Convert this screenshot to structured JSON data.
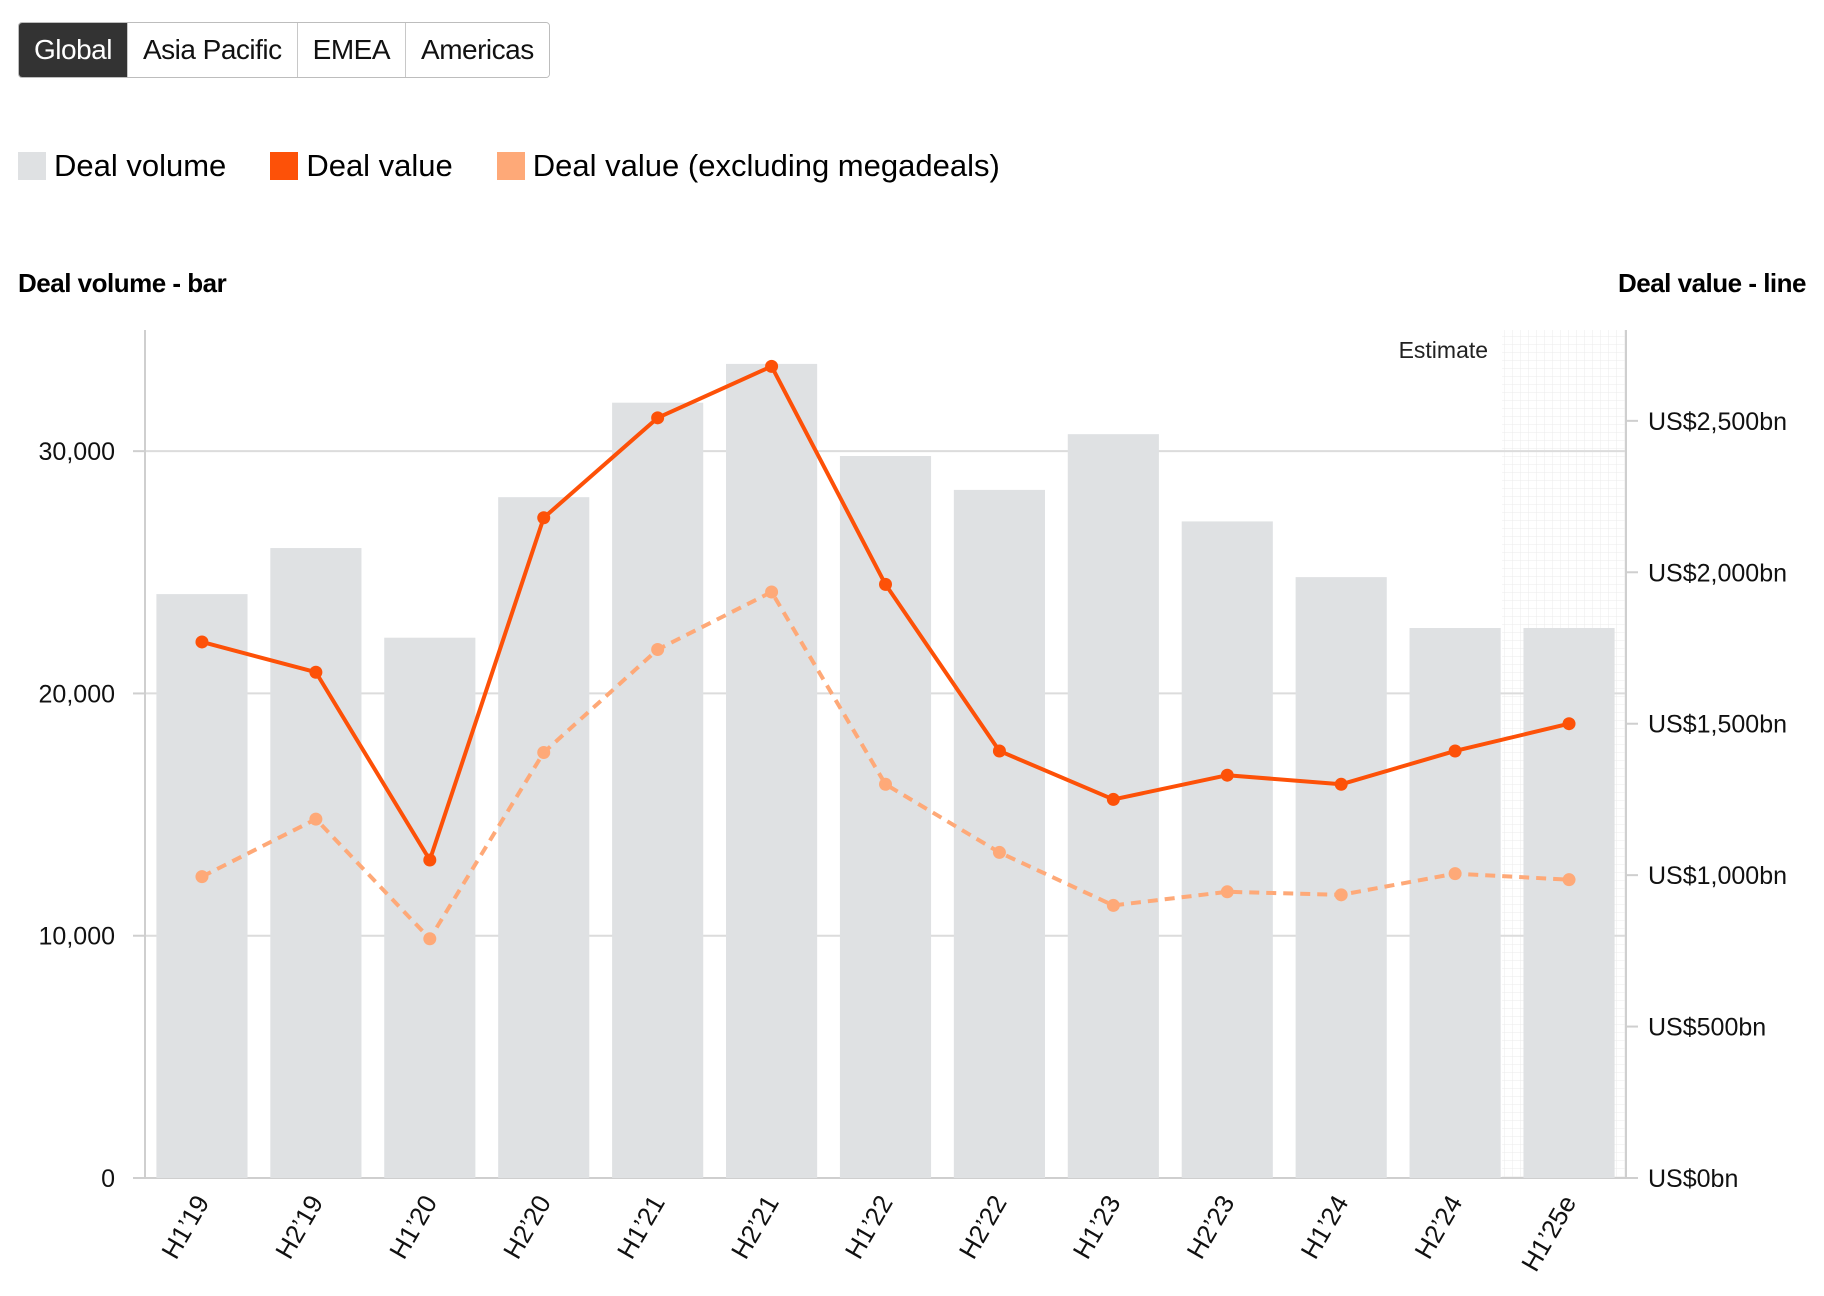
{
  "tabs": [
    {
      "label": "Global",
      "active": true
    },
    {
      "label": "Asia Pacific",
      "active": false
    },
    {
      "label": "EMEA",
      "active": false
    },
    {
      "label": "Americas",
      "active": false
    }
  ],
  "legend": [
    {
      "label": "Deal volume",
      "color": "#dfe1e3"
    },
    {
      "label": "Deal value",
      "color": "#fd5108"
    },
    {
      "label": "Deal value (excluding megadeals)",
      "color": "#fea978"
    }
  ],
  "chart_data": {
    "type": "bar",
    "categories": [
      "H1’19",
      "H2’19",
      "H1’20",
      "H2’20",
      "H1’21",
      "H2’21",
      "H1’22",
      "H2’22",
      "H1’23",
      "H2’23",
      "H1’24",
      "H2’24",
      "H1’25e"
    ],
    "ylabel_left": "Deal volume - bar",
    "ylabel_right": "Deal value - line",
    "ylim_left": [
      0,
      35000
    ],
    "ylim_right": [
      0,
      2800
    ],
    "yticks_left": [
      {
        "value": 0,
        "label": "0"
      },
      {
        "value": 10000,
        "label": "10,000"
      },
      {
        "value": 20000,
        "label": "20,000"
      },
      {
        "value": 30000,
        "label": "30,000"
      }
    ],
    "yticks_right": [
      {
        "value": 0,
        "label": "US$0bn"
      },
      {
        "value": 500,
        "label": "US$500bn"
      },
      {
        "value": 1000,
        "label": "US$1,000bn"
      },
      {
        "value": 1500,
        "label": "US$1,500bn"
      },
      {
        "value": 2000,
        "label": "US$2,000bn"
      },
      {
        "value": 2500,
        "label": "US$2,500bn"
      }
    ],
    "grid": true,
    "annotation": "Estimate",
    "estimate_from_index": 12,
    "series": [
      {
        "name": "Deal volume",
        "type": "bar",
        "axis": "left",
        "color": "#dfe1e3",
        "values": [
          24100,
          26000,
          22300,
          28100,
          32000,
          33600,
          29800,
          28400,
          30700,
          27100,
          24800,
          22700,
          22700
        ]
      },
      {
        "name": "Deal value",
        "type": "line",
        "axis": "right",
        "color": "#fd5108",
        "dashed": false,
        "values": [
          1770,
          1670,
          1050,
          2180,
          2510,
          2680,
          1960,
          1410,
          1250,
          1330,
          1300,
          1410,
          1500
        ]
      },
      {
        "name": "Deal value (excluding megadeals)",
        "type": "line",
        "axis": "right",
        "color": "#fea978",
        "dashed": true,
        "values": [
          995,
          1185,
          790,
          1405,
          1745,
          1935,
          1300,
          1075,
          900,
          945,
          935,
          1005,
          985
        ]
      }
    ]
  }
}
